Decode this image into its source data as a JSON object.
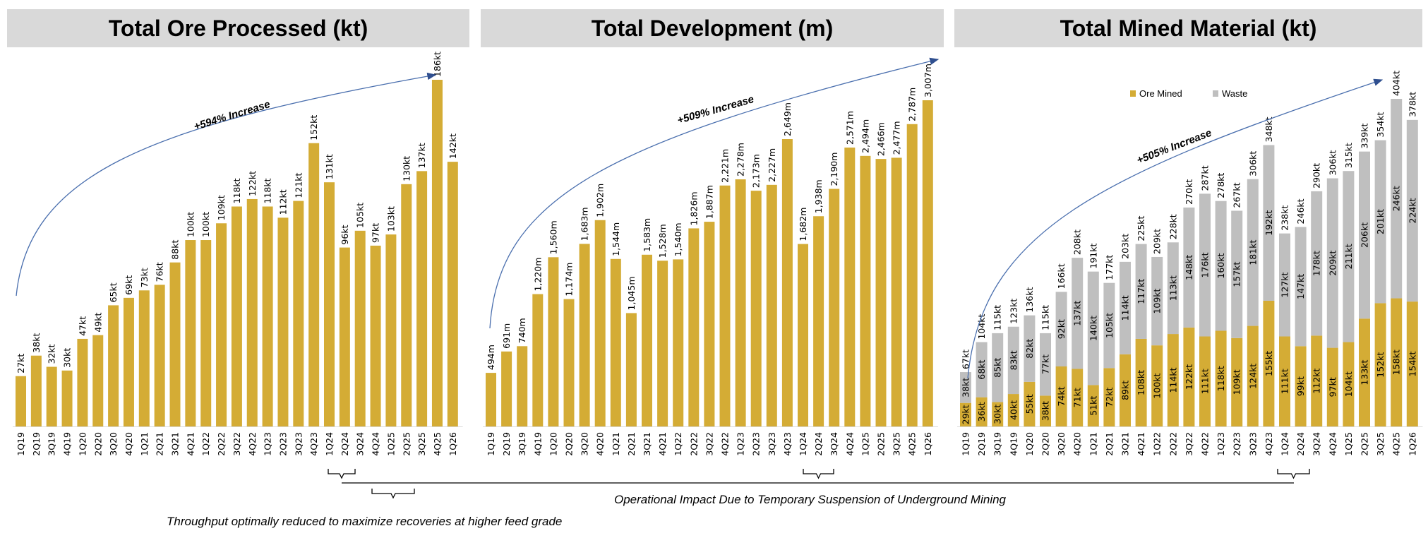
{
  "colors": {
    "ore": "#D4AC35",
    "waste": "#BFBFBF",
    "arrow": "#4A6FAE",
    "header_bg": "#D9D9D9"
  },
  "notes": {
    "operational": "Operational Impact Due to Temporary Suspension of Underground Mining",
    "throughput": "Throughput optimally reduced to maximize recoveries at higher feed grade"
  },
  "chart_data": [
    {
      "type": "bar",
      "title": "Total Ore Processed (kt)",
      "annotation": "+594% Increase",
      "unit_suffix": "kt",
      "categories": [
        "1Q19",
        "2Q19",
        "3Q19",
        "4Q19",
        "1Q20",
        "2Q20",
        "3Q20",
        "4Q20",
        "1Q21",
        "2Q21",
        "3Q21",
        "4Q21",
        "1Q22",
        "2Q22",
        "3Q22",
        "4Q22",
        "1Q23",
        "2Q23",
        "3Q23",
        "4Q23",
        "1Q24",
        "2Q24",
        "3Q24",
        "4Q24",
        "1Q25",
        "2Q25",
        "3Q25",
        "4Q25",
        "1Q26"
      ],
      "values": [
        27,
        38,
        32,
        30,
        47,
        49,
        65,
        69,
        73,
        76,
        88,
        100,
        100,
        109,
        118,
        122,
        118,
        112,
        121,
        152,
        131,
        96,
        105,
        97,
        103,
        130,
        137,
        186,
        142
      ],
      "ylim": [
        0,
        186
      ]
    },
    {
      "type": "bar",
      "title": "Total Development (m)",
      "annotation": "+509% Increase",
      "unit_suffix": "m",
      "categories": [
        "1Q19",
        "2Q19",
        "3Q19",
        "4Q19",
        "1Q20",
        "2Q20",
        "3Q20",
        "4Q20",
        "1Q21",
        "2Q21",
        "3Q21",
        "4Q21",
        "1Q22",
        "2Q22",
        "3Q22",
        "4Q22",
        "1Q23",
        "2Q23",
        "3Q23",
        "4Q23",
        "1Q24",
        "2Q24",
        "3Q24",
        "4Q24",
        "1Q25",
        "2Q25",
        "3Q25",
        "4Q25",
        "1Q26"
      ],
      "values": [
        494,
        691,
        740,
        1220,
        1560,
        1174,
        1683,
        1902,
        1544,
        1045,
        1583,
        1528,
        1540,
        1826,
        1887,
        2221,
        2278,
        2173,
        2227,
        2649,
        1682,
        1938,
        2190,
        2571,
        2494,
        2466,
        2477,
        2787,
        3007
      ],
      "ylim": [
        0,
        3007
      ]
    },
    {
      "type": "bar",
      "stacked": true,
      "title": "Total Mined Material (kt)",
      "annotation": "+505% Increase",
      "unit_suffix": "kt",
      "legend": "top",
      "categories": [
        "1Q19",
        "2Q19",
        "3Q19",
        "4Q19",
        "1Q20",
        "2Q20",
        "3Q20",
        "4Q20",
        "1Q21",
        "2Q21",
        "3Q21",
        "4Q21",
        "1Q22",
        "2Q22",
        "3Q22",
        "4Q22",
        "1Q23",
        "2Q23",
        "3Q23",
        "4Q23",
        "1Q24",
        "2Q24",
        "3Q24",
        "4Q24",
        "1Q25",
        "2Q25",
        "3Q25",
        "4Q25",
        "1Q26"
      ],
      "series": [
        {
          "name": "Ore Mined",
          "values": [
            29,
            36,
            30,
            40,
            55,
            38,
            74,
            71,
            51,
            72,
            89,
            108,
            100,
            114,
            122,
            111,
            118,
            109,
            124,
            155,
            111,
            99,
            112,
            97,
            104,
            133,
            152,
            158,
            154
          ]
        },
        {
          "name": "Waste",
          "values": [
            38,
            68,
            85,
            83,
            82,
            77,
            92,
            137,
            140,
            105,
            114,
            117,
            109,
            113,
            148,
            176,
            160,
            157,
            181,
            192,
            127,
            147,
            178,
            209,
            211,
            206,
            201,
            246,
            224
          ]
        }
      ],
      "totals": [
        67,
        104,
        115,
        123,
        136,
        115,
        166,
        208,
        191,
        177,
        203,
        225,
        209,
        228,
        270,
        287,
        278,
        267,
        306,
        348,
        238,
        246,
        290,
        306,
        315,
        339,
        354,
        404,
        378
      ],
      "ylim": [
        0,
        404
      ]
    }
  ]
}
